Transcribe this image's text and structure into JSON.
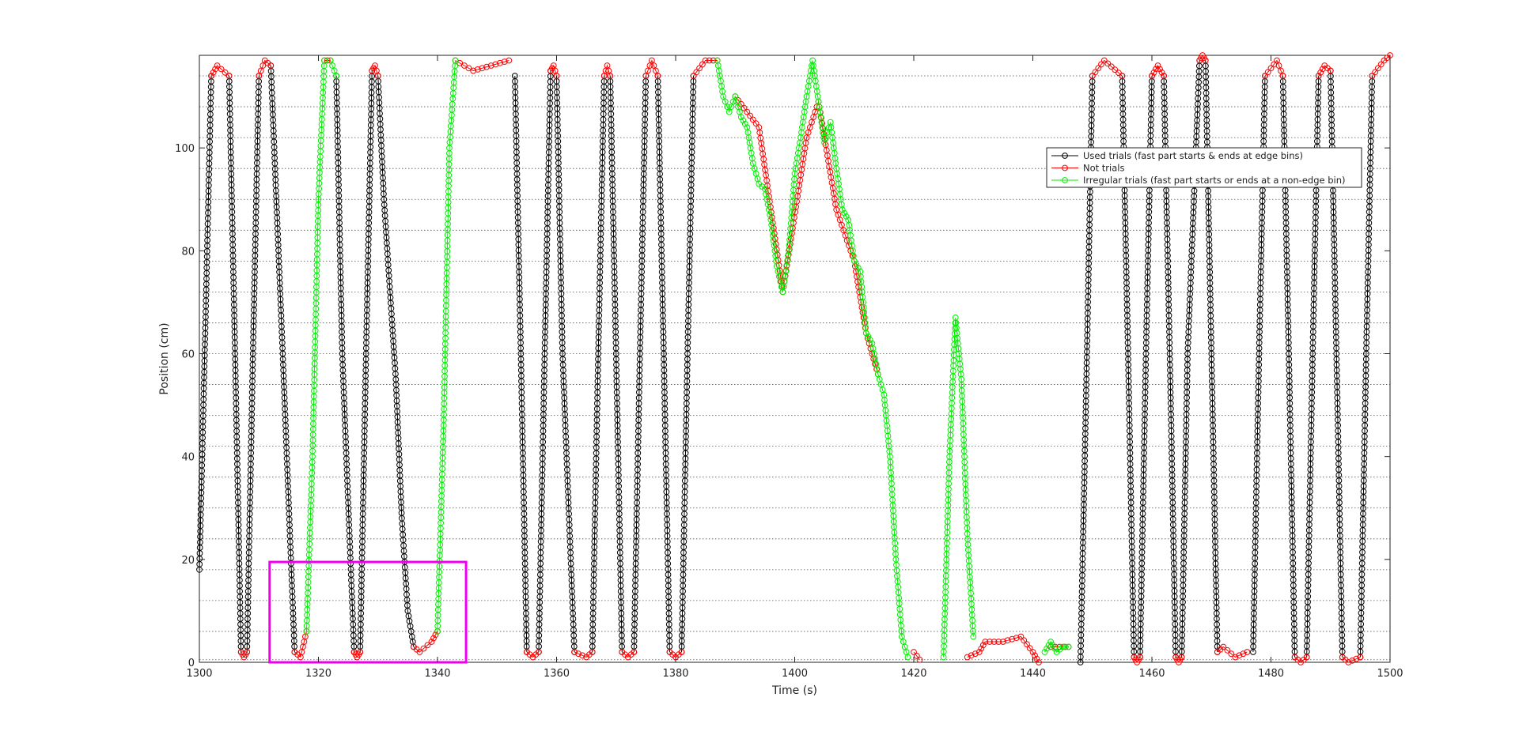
{
  "chart_data": {
    "type": "line",
    "title": "",
    "xlabel": "Time (s)",
    "ylabel": "Position (cm)",
    "xlim": [
      1300,
      1500
    ],
    "ylim": [
      0,
      118
    ],
    "x_ticks": [
      1300,
      1320,
      1340,
      1360,
      1380,
      1400,
      1420,
      1440,
      1460,
      1480,
      1500
    ],
    "y_ticks": [
      0,
      20,
      40,
      60,
      80,
      100
    ],
    "y_gridlines": [
      0.5,
      6,
      12,
      18,
      24,
      30,
      36,
      42,
      48,
      54,
      60,
      66,
      72,
      78,
      84,
      90,
      96,
      102,
      108,
      114,
      118
    ],
    "grid": "horizontal dotted",
    "legend_position": "top-right",
    "colors": {
      "used": "#000000",
      "not_trial": "#ff0000",
      "irregular": "#00ee00",
      "highlight_box": "#ee00ee"
    },
    "series": [
      {
        "name": "Used trials (fast part starts & ends at edge bins)",
        "color": "#000000",
        "segments": [
          [
            [
              1300,
              18
            ],
            [
              1301,
              65
            ],
            [
              1302,
              114
            ]
          ],
          [
            [
              1305,
              114
            ],
            [
              1306,
              60
            ],
            [
              1307,
              2
            ]
          ],
          [
            [
              1308,
              2
            ],
            [
              1309,
              60
            ],
            [
              1310,
              114
            ]
          ],
          [
            [
              1312,
              116
            ],
            [
              1314,
              60
            ],
            [
              1316,
              2
            ]
          ],
          [
            [
              1323,
              114
            ],
            [
              1324,
              60
            ],
            [
              1326,
              2
            ]
          ],
          [
            [
              1327,
              2
            ],
            [
              1328,
              60
            ],
            [
              1329,
              115
            ]
          ],
          [
            [
              1330,
              114
            ],
            [
              1331,
              90
            ],
            [
              1333,
              55
            ],
            [
              1334,
              28
            ],
            [
              1335,
              10
            ],
            [
              1336,
              3
            ]
          ],
          [
            [
              1353,
              114
            ],
            [
              1354,
              60
            ],
            [
              1355,
              2
            ]
          ],
          [
            [
              1357,
              2
            ],
            [
              1358,
              60
            ],
            [
              1359,
              115
            ]
          ],
          [
            [
              1360,
              114
            ],
            [
              1361,
              60
            ],
            [
              1363,
              2
            ]
          ],
          [
            [
              1366,
              2
            ],
            [
              1367,
              60
            ],
            [
              1368,
              114
            ]
          ],
          [
            [
              1369,
              114
            ],
            [
              1370,
              60
            ],
            [
              1371,
              2
            ]
          ],
          [
            [
              1373,
              2
            ],
            [
              1374,
              60
            ],
            [
              1375,
              114
            ]
          ],
          [
            [
              1377,
              114
            ],
            [
              1378,
              60
            ],
            [
              1379,
              2
            ]
          ],
          [
            [
              1381,
              2
            ],
            [
              1382,
              60
            ],
            [
              1383,
              114
            ]
          ],
          [
            [
              1448,
              0
            ],
            [
              1449,
              55
            ],
            [
              1450,
              114
            ]
          ],
          [
            [
              1455,
              114
            ],
            [
              1456,
              60
            ],
            [
              1457,
              1
            ]
          ],
          [
            [
              1458,
              1
            ],
            [
              1459,
              60
            ],
            [
              1460,
              114
            ]
          ],
          [
            [
              1462,
              114
            ],
            [
              1463,
              60
            ],
            [
              1464,
              1
            ]
          ],
          [
            [
              1465,
              1
            ],
            [
              1466,
              60
            ],
            [
              1468,
              117
            ]
          ],
          [
            [
              1469,
              117
            ],
            [
              1470,
              60
            ],
            [
              1471,
              2
            ]
          ],
          [
            [
              1477,
              2
            ],
            [
              1478,
              60
            ],
            [
              1479,
              114
            ]
          ],
          [
            [
              1482,
              114
            ],
            [
              1483,
              60
            ],
            [
              1484,
              1
            ]
          ],
          [
            [
              1486,
              1
            ],
            [
              1487,
              60
            ],
            [
              1488,
              114
            ]
          ],
          [
            [
              1490,
              115
            ],
            [
              1491,
              60
            ],
            [
              1492,
              1
            ]
          ],
          [
            [
              1495,
              1
            ],
            [
              1496,
              60
            ],
            [
              1497,
              114
            ]
          ]
        ]
      },
      {
        "name": "Not trials",
        "color": "#ff0000",
        "segments": [
          [
            [
              1302,
              114
            ],
            [
              1303,
              116
            ],
            [
              1305,
              114
            ]
          ],
          [
            [
              1307,
              2
            ],
            [
              1307.5,
              1
            ],
            [
              1308,
              2
            ]
          ],
          [
            [
              1310,
              114
            ],
            [
              1311,
              117
            ],
            [
              1312,
              116
            ]
          ],
          [
            [
              1316,
              2
            ],
            [
              1317,
              1
            ],
            [
              1318,
              6
            ]
          ],
          [
            [
              1321,
              117
            ],
            [
              1322,
              117
            ]
          ],
          [
            [
              1326,
              2
            ],
            [
              1326.5,
              1
            ],
            [
              1327,
              2
            ]
          ],
          [
            [
              1329,
              115
            ],
            [
              1329.5,
              116
            ],
            [
              1330,
              114
            ]
          ],
          [
            [
              1336,
              3
            ],
            [
              1337,
              2
            ],
            [
              1339,
              4
            ],
            [
              1340,
              6
            ]
          ],
          [
            [
              1343,
              117
            ],
            [
              1346,
              115
            ],
            [
              1349,
              116
            ],
            [
              1352,
              117
            ]
          ],
          [
            [
              1355,
              2
            ],
            [
              1356,
              1
            ],
            [
              1357,
              2
            ]
          ],
          [
            [
              1359,
              115
            ],
            [
              1359.5,
              116
            ],
            [
              1360,
              114
            ]
          ],
          [
            [
              1363,
              2
            ],
            [
              1365,
              1
            ],
            [
              1366,
              2
            ]
          ],
          [
            [
              1368,
              114
            ],
            [
              1368.5,
              116
            ],
            [
              1369,
              114
            ]
          ],
          [
            [
              1371,
              2
            ],
            [
              1372,
              1
            ],
            [
              1373,
              2
            ]
          ],
          [
            [
              1375,
              114
            ],
            [
              1376,
              117
            ],
            [
              1377,
              114
            ]
          ],
          [
            [
              1379,
              2
            ],
            [
              1380,
              1
            ],
            [
              1381,
              2
            ]
          ],
          [
            [
              1383,
              114
            ],
            [
              1385,
              117
            ],
            [
              1387,
              117
            ]
          ],
          [
            [
              1390,
              110
            ],
            [
              1394,
              104
            ],
            [
              1398,
              72
            ],
            [
              1402,
              102
            ],
            [
              1404,
              109
            ],
            [
              1407,
              88
            ],
            [
              1410,
              78
            ],
            [
              1412,
              64
            ],
            [
              1414,
              56
            ]
          ],
          [
            [
              1420,
              2
            ],
            [
              1421,
              0.5
            ]
          ],
          [
            [
              1429,
              1
            ],
            [
              1431,
              2
            ],
            [
              1432,
              4
            ],
            [
              1435,
              4
            ],
            [
              1438,
              5
            ],
            [
              1440,
              2
            ],
            [
              1441,
              0
            ]
          ],
          [
            [
              1443,
              3
            ],
            [
              1446,
              3
            ]
          ],
          [
            [
              1450,
              114
            ],
            [
              1452,
              117
            ],
            [
              1455,
              114
            ]
          ],
          [
            [
              1457,
              1
            ],
            [
              1457.5,
              0
            ],
            [
              1458,
              1
            ]
          ],
          [
            [
              1460,
              114
            ],
            [
              1461,
              116
            ],
            [
              1462,
              114
            ]
          ],
          [
            [
              1464,
              1
            ],
            [
              1464.5,
              0
            ],
            [
              1465,
              1
            ]
          ],
          [
            [
              1468,
              117
            ],
            [
              1468.5,
              118
            ],
            [
              1469,
              117
            ]
          ],
          [
            [
              1471,
              2
            ],
            [
              1472,
              3
            ],
            [
              1474,
              1
            ],
            [
              1476,
              2
            ]
          ],
          [
            [
              1479,
              114
            ],
            [
              1481,
              117
            ],
            [
              1482,
              114
            ]
          ],
          [
            [
              1484,
              1
            ],
            [
              1485,
              0
            ],
            [
              1486,
              1
            ]
          ],
          [
            [
              1488,
              114
            ],
            [
              1489,
              116
            ],
            [
              1490,
              115
            ]
          ],
          [
            [
              1492,
              1
            ],
            [
              1493,
              0
            ],
            [
              1495,
              1
            ]
          ],
          [
            [
              1497,
              114
            ],
            [
              1499,
              117
            ],
            [
              1500,
              118
            ]
          ]
        ]
      },
      {
        "name": "Irregular trials (fast part starts or ends at a non-edge bin)",
        "color": "#00ee00",
        "segments": [
          [
            [
              1318,
              6
            ],
            [
              1319,
              40
            ],
            [
              1320,
              90
            ],
            [
              1321,
              117
            ]
          ],
          [
            [
              1322,
              117
            ],
            [
              1323,
              114
            ]
          ],
          [
            [
              1340,
              6
            ],
            [
              1341,
              45
            ],
            [
              1342,
              100
            ],
            [
              1343,
              117
            ]
          ],
          [
            [
              1387,
              117
            ],
            [
              1388,
              110
            ],
            [
              1389,
              107
            ],
            [
              1390,
              110
            ],
            [
              1391,
              106
            ],
            [
              1392,
              104
            ],
            [
              1393,
              97
            ],
            [
              1394,
              93
            ],
            [
              1395,
              92
            ],
            [
              1396,
              86
            ],
            [
              1397,
              77
            ],
            [
              1398,
              72
            ],
            [
              1399,
              80
            ],
            [
              1400,
              95
            ],
            [
              1401,
              102
            ],
            [
              1402,
              110
            ],
            [
              1403,
              117
            ],
            [
              1404,
              109
            ],
            [
              1405,
              101
            ],
            [
              1406,
              105
            ],
            [
              1407,
              96
            ],
            [
              1408,
              88
            ],
            [
              1409,
              86
            ],
            [
              1410,
              78
            ],
            [
              1411,
              76
            ],
            [
              1412,
              64
            ],
            [
              1413,
              62
            ],
            [
              1414,
              56
            ],
            [
              1415,
              52
            ],
            [
              1416,
              40
            ],
            [
              1417,
              20
            ],
            [
              1418,
              5
            ],
            [
              1419,
              1
            ]
          ],
          [
            [
              1425,
              1
            ],
            [
              1426,
              40
            ],
            [
              1427,
              67
            ],
            [
              1428,
              55
            ],
            [
              1429,
              25
            ],
            [
              1430,
              5
            ]
          ],
          [
            [
              1442,
              2
            ],
            [
              1443,
              4
            ],
            [
              1444,
              2
            ],
            [
              1445,
              3
            ],
            [
              1446,
              3
            ]
          ]
        ]
      }
    ],
    "annotations": [
      {
        "type": "rectangle",
        "color": "#ee00ee",
        "x": [
          1311.8,
          1344.8
        ],
        "y": [
          0,
          19.5
        ]
      }
    ]
  }
}
